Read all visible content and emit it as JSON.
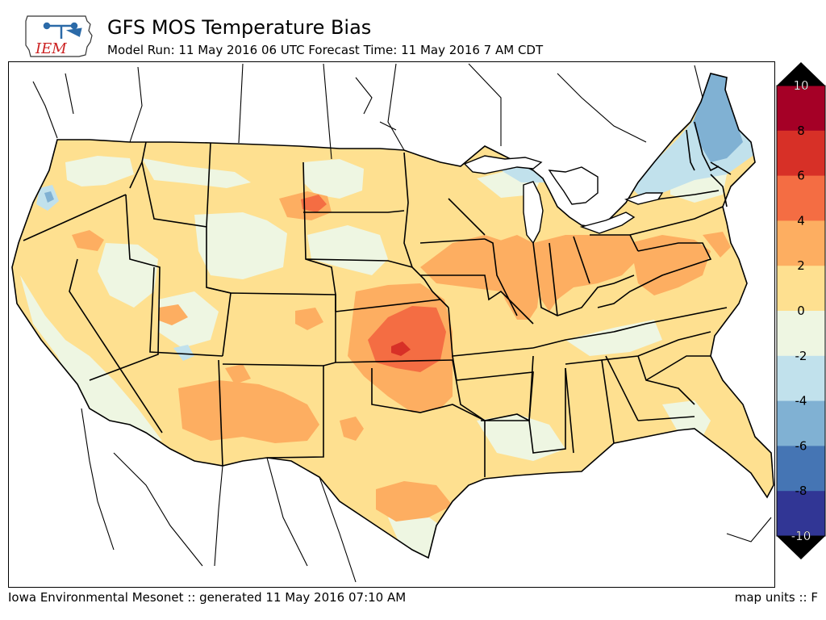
{
  "header": {
    "title": "GFS MOS Temperature Bias",
    "subtitle": "Model Run: 11 May 2016 06 UTC Forecast Time: 11 May 2016 7 AM CDT"
  },
  "logo": {
    "text": "IEM",
    "icon": "iowa-state-outline-icon",
    "text_color": "#cc2222",
    "accent_color": "#2b6aa8"
  },
  "footer": {
    "credit": "Iowa Environmental Mesonet :: generated 11 May 2016 07:10 AM",
    "units": "map units :: F"
  },
  "colorbar": {
    "tick_labels": [
      "10",
      "8",
      "6",
      "4",
      "2",
      "0",
      "-2",
      "-4",
      "-6",
      "-8",
      "-10"
    ],
    "bins": [
      {
        "range": [
          8,
          10
        ],
        "color": "#a50026"
      },
      {
        "range": [
          6,
          8
        ],
        "color": "#d73027"
      },
      {
        "range": [
          4,
          6
        ],
        "color": "#f46d43"
      },
      {
        "range": [
          2,
          4
        ],
        "color": "#fdae61"
      },
      {
        "range": [
          0,
          2
        ],
        "color": "#fee090"
      },
      {
        "range": [
          -2,
          0
        ],
        "color": "#eef6e2"
      },
      {
        "range": [
          -4,
          -2
        ],
        "color": "#c1e1ec"
      },
      {
        "range": [
          -6,
          -4
        ],
        "color": "#80b1d3"
      },
      {
        "range": [
          -8,
          -6
        ],
        "color": "#4575b4"
      },
      {
        "range": [
          -10,
          -8
        ],
        "color": "#313695"
      }
    ],
    "over_color": "#000000",
    "under_color": "#000000"
  },
  "map": {
    "region": "Contiguous United States",
    "field": "GFS MOS temperature bias",
    "units": "F",
    "land_outside_field_color": "#ffffff"
  }
}
